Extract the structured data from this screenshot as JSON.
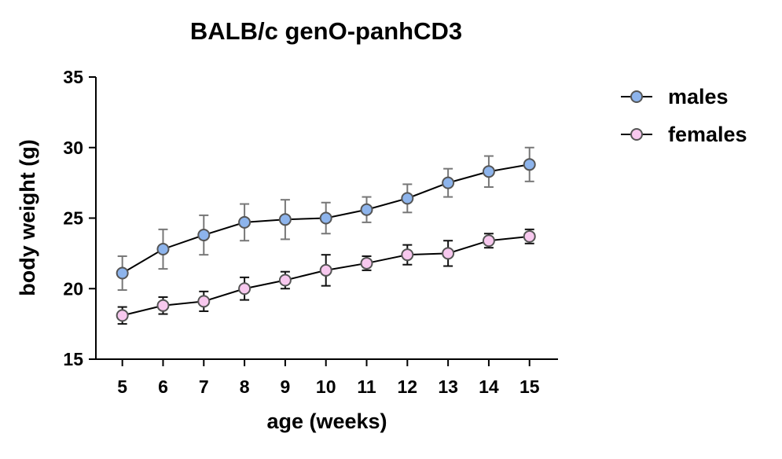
{
  "chart_data": {
    "type": "line",
    "title": "BALB/c genO-panhCD3",
    "xlabel": "age (weeks)",
    "ylabel": "body weight (g)",
    "x": [
      5,
      6,
      7,
      8,
      9,
      10,
      11,
      12,
      13,
      14,
      15
    ],
    "x_ticks": [
      "5",
      "6",
      "7",
      "8",
      "9",
      "10",
      "11",
      "12",
      "13",
      "14",
      "15"
    ],
    "xlim": [
      4.35,
      15.7
    ],
    "ylim": [
      15,
      35
    ],
    "y_ticks": [
      "15",
      "20",
      "25",
      "30",
      "35"
    ],
    "grid": false,
    "legend_position": "top-right",
    "series": [
      {
        "name": "males",
        "marker_color": "#8db4ec",
        "errorbar_color": "#777777",
        "values": [
          21.1,
          22.8,
          23.8,
          24.7,
          24.9,
          25.0,
          25.6,
          26.4,
          27.5,
          28.3,
          28.8
        ],
        "errors": [
          1.2,
          1.4,
          1.4,
          1.3,
          1.4,
          1.1,
          0.9,
          1.0,
          1.0,
          1.1,
          1.2
        ]
      },
      {
        "name": "females",
        "marker_color": "#f7c8ee",
        "errorbar_color": "#111111",
        "values": [
          18.1,
          18.8,
          19.1,
          20.0,
          20.6,
          21.3,
          21.8,
          22.4,
          22.5,
          23.4,
          23.7
        ],
        "errors": [
          0.6,
          0.6,
          0.7,
          0.8,
          0.6,
          1.1,
          0.5,
          0.7,
          0.9,
          0.5,
          0.5
        ]
      }
    ]
  }
}
